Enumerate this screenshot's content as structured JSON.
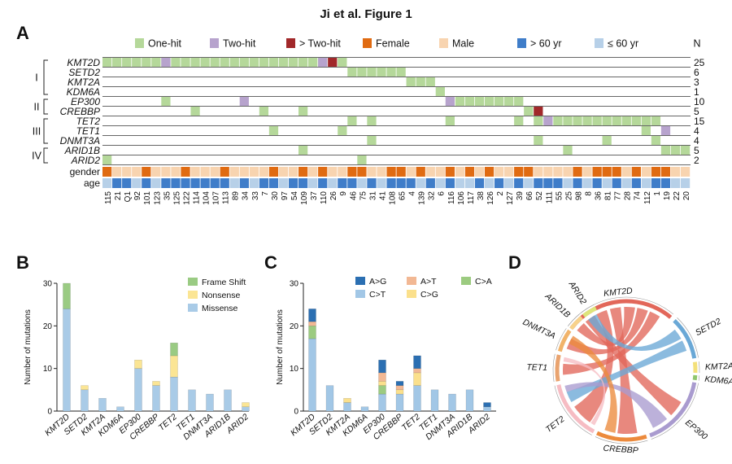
{
  "title": "Ji et al. Figure 1",
  "panels": {
    "A": "A",
    "B": "B",
    "C": "C",
    "D": "D"
  },
  "colors": {
    "one_hit": "#b5d89a",
    "two_hit": "#b7a3cd",
    "gt_two_hit": "#a1282a",
    "female": "#e06b12",
    "male": "#f8d4b0",
    "gt60": "#3f7dc9",
    "le60": "#b7d0e8",
    "frame_shift": "#9acb83",
    "nonsense": "#fbe594",
    "missense": "#a9cbe7",
    "AG": "#2b6fb2",
    "CT": "#a2c7e6",
    "AT": "#f2b894",
    "CG": "#fbe08c",
    "CA": "#9ccb80"
  },
  "panelA": {
    "legend": [
      {
        "key": "one_hit",
        "label": "One-hit"
      },
      {
        "key": "two_hit",
        "label": "Two-hit"
      },
      {
        "key": "gt_two_hit",
        "label": "> Two-hit"
      },
      {
        "key": "female",
        "label": "Female"
      },
      {
        "key": "male",
        "label": "Male"
      },
      {
        "key": "gt60",
        "label": "> 60 yr"
      },
      {
        "key": "le60",
        "label": "≤ 60 yr"
      }
    ],
    "n_header": "N",
    "groups": [
      {
        "label": "I",
        "genes": [
          "KMT2D",
          "SETD2",
          "KMT2A",
          "KDM6A"
        ]
      },
      {
        "label": "II",
        "genes": [
          "EP300",
          "CREBBP"
        ]
      },
      {
        "label": "III",
        "genes": [
          "TET2",
          "TET1",
          "DNMT3A"
        ]
      },
      {
        "label": "IV",
        "genes": [
          "ARID1B",
          "ARID2"
        ]
      }
    ],
    "genes": [
      {
        "name": "KMT2D",
        "n": "25"
      },
      {
        "name": "SETD2",
        "n": "6"
      },
      {
        "name": "KMT2A",
        "n": "3"
      },
      {
        "name": "KDM6A",
        "n": "1"
      },
      {
        "name": "EP300",
        "n": "10"
      },
      {
        "name": "CREBBP",
        "n": "5"
      },
      {
        "name": "TET2",
        "n": "15"
      },
      {
        "name": "TET1",
        "n": "4"
      },
      {
        "name": "DNMT3A",
        "n": "4"
      },
      {
        "name": "ARID1B",
        "n": "5"
      },
      {
        "name": "ARID2",
        "n": "2"
      }
    ],
    "gender_label": "gender",
    "age_label": "age",
    "samples": [
      "115",
      "21",
      "Q1",
      "92",
      "101",
      "123",
      "35",
      "125",
      "122",
      "114",
      "104",
      "107",
      "113",
      "89",
      "34",
      "33",
      "7",
      "30",
      "97",
      "54",
      "109",
      "37",
      "110",
      "26",
      "9",
      "46",
      "75",
      "31",
      "41",
      "108",
      "65",
      "4",
      "139",
      "32",
      "6",
      "116",
      "106",
      "117",
      "38",
      "126",
      "2",
      "127",
      "39",
      "66",
      "52",
      "111",
      "55",
      "25",
      "98",
      "8",
      "36",
      "81",
      "77",
      "28",
      "74",
      "112",
      "1",
      "19",
      "22",
      "20"
    ],
    "cells": [
      {
        "row": 0,
        "from": 0,
        "to": 22,
        "type": "one_hit"
      },
      {
        "row": 0,
        "from": 6,
        "to": 6,
        "type": "two_hit"
      },
      {
        "row": 0,
        "from": 22,
        "to": 22,
        "type": "two_hit"
      },
      {
        "row": 0,
        "from": 23,
        "to": 23,
        "type": "gt_two_hit"
      },
      {
        "row": 0,
        "from": 24,
        "to": 24,
        "type": "one_hit"
      },
      {
        "row": 1,
        "from": 25,
        "to": 30,
        "type": "one_hit"
      },
      {
        "row": 2,
        "from": 31,
        "to": 33,
        "type": "one_hit"
      },
      {
        "row": 3,
        "from": 34,
        "to": 34,
        "type": "one_hit"
      },
      {
        "row": 4,
        "from": 6,
        "to": 6,
        "type": "one_hit"
      },
      {
        "row": 4,
        "from": 14,
        "to": 14,
        "type": "two_hit"
      },
      {
        "row": 4,
        "from": 35,
        "to": 35,
        "type": "two_hit"
      },
      {
        "row": 4,
        "from": 36,
        "to": 42,
        "type": "one_hit"
      },
      {
        "row": 5,
        "from": 9,
        "to": 9,
        "type": "one_hit"
      },
      {
        "row": 5,
        "from": 16,
        "to": 16,
        "type": "one_hit"
      },
      {
        "row": 5,
        "from": 20,
        "to": 20,
        "type": "one_hit"
      },
      {
        "row": 5,
        "from": 43,
        "to": 43,
        "type": "one_hit"
      },
      {
        "row": 5,
        "from": 44,
        "to": 44,
        "type": "gt_two_hit"
      },
      {
        "row": 6,
        "from": 25,
        "to": 25,
        "type": "one_hit"
      },
      {
        "row": 6,
        "from": 27,
        "to": 27,
        "type": "one_hit"
      },
      {
        "row": 6,
        "from": 35,
        "to": 35,
        "type": "one_hit"
      },
      {
        "row": 6,
        "from": 42,
        "to": 42,
        "type": "one_hit"
      },
      {
        "row": 6,
        "from": 44,
        "to": 44,
        "type": "one_hit"
      },
      {
        "row": 6,
        "from": 45,
        "to": 45,
        "type": "two_hit"
      },
      {
        "row": 6,
        "from": 46,
        "to": 56,
        "type": "one_hit"
      },
      {
        "row": 7,
        "from": 17,
        "to": 17,
        "type": "one_hit"
      },
      {
        "row": 7,
        "from": 24,
        "to": 24,
        "type": "one_hit"
      },
      {
        "row": 7,
        "from": 55,
        "to": 55,
        "type": "one_hit"
      },
      {
        "row": 7,
        "from": 57,
        "to": 57,
        "type": "two_hit"
      },
      {
        "row": 8,
        "from": 27,
        "to": 27,
        "type": "one_hit"
      },
      {
        "row": 8,
        "from": 44,
        "to": 44,
        "type": "one_hit"
      },
      {
        "row": 8,
        "from": 51,
        "to": 51,
        "type": "one_hit"
      },
      {
        "row": 8,
        "from": 56,
        "to": 56,
        "type": "one_hit"
      },
      {
        "row": 9,
        "from": 20,
        "to": 20,
        "type": "one_hit"
      },
      {
        "row": 9,
        "from": 47,
        "to": 47,
        "type": "one_hit"
      },
      {
        "row": 9,
        "from": 57,
        "to": 59,
        "type": "one_hit"
      },
      {
        "row": 10,
        "from": 0,
        "to": 0,
        "type": "one_hit"
      },
      {
        "row": 10,
        "from": 26,
        "to": 26,
        "type": "one_hit"
      }
    ],
    "female_indices": [
      0,
      4,
      8,
      12,
      17,
      20,
      22,
      25,
      26,
      29,
      30,
      32,
      35,
      37,
      39,
      42,
      43,
      48,
      50,
      51,
      52,
      54,
      56,
      57
    ],
    "gt60_indices": [
      1,
      2,
      4,
      6,
      7,
      8,
      9,
      10,
      11,
      12,
      14,
      16,
      17,
      19,
      20,
      22,
      24,
      25,
      27,
      29,
      30,
      31,
      33,
      35,
      38,
      40,
      42,
      44,
      45,
      46,
      48,
      50,
      52,
      54,
      56,
      57
    ]
  },
  "panelB": {
    "ylabel": "Number of mutations",
    "yticks": [
      "0",
      "10",
      "20",
      "30"
    ],
    "legend": [
      {
        "key": "frame_shift",
        "label": "Frame Shift"
      },
      {
        "key": "nonsense",
        "label": "Nonsense"
      },
      {
        "key": "missense",
        "label": "Missense"
      }
    ]
  },
  "panelC": {
    "ylabel": "Number of mutations",
    "yticks": [
      "0",
      "10",
      "20",
      "30"
    ],
    "legend": [
      {
        "key": "AG",
        "label": "A>G"
      },
      {
        "key": "AT",
        "label": "A>T"
      },
      {
        "key": "CA",
        "label": "C>A"
      },
      {
        "key": "CT",
        "label": "C>T"
      },
      {
        "key": "CG",
        "label": "C>G"
      }
    ]
  },
  "chart_data": [
    {
      "type": "bar",
      "stacked": true,
      "title": "",
      "xlabel": "",
      "ylabel": "Number of mutations",
      "ylim": [
        0,
        30
      ],
      "categories": [
        "KMT2D",
        "SETD2",
        "KMT2A",
        "KDM6A",
        "EP300",
        "CREBBP",
        "TET2",
        "TET1",
        "DNMT3A",
        "ARID1B",
        "ARID2"
      ],
      "series": [
        {
          "name": "Missense",
          "color_key": "missense",
          "values": [
            24,
            5,
            3,
            1,
            10,
            6,
            8,
            5,
            4,
            5,
            1
          ]
        },
        {
          "name": "Nonsense",
          "color_key": "nonsense",
          "values": [
            0,
            1,
            0,
            0,
            2,
            1,
            5,
            0,
            0,
            0,
            1
          ]
        },
        {
          "name": "Frame Shift",
          "color_key": "frame_shift",
          "values": [
            6,
            0,
            0,
            0,
            0,
            0,
            3,
            0,
            0,
            0,
            0
          ]
        }
      ]
    },
    {
      "type": "bar",
      "stacked": true,
      "title": "",
      "xlabel": "",
      "ylabel": "Number of mutations",
      "ylim": [
        0,
        30
      ],
      "categories": [
        "KMT2D",
        "SETD2",
        "KMT2A",
        "KDM6A",
        "EP300",
        "CREBBP",
        "TET2",
        "TET1",
        "DNMT3A",
        "ARID1B",
        "ARID2"
      ],
      "series": [
        {
          "name": "C>T",
          "color_key": "CT",
          "values": [
            17,
            6,
            2,
            1,
            4,
            4,
            6,
            5,
            4,
            5,
            1
          ]
        },
        {
          "name": "C>A",
          "color_key": "CA",
          "values": [
            3,
            0,
            0,
            0,
            2,
            0,
            0,
            0,
            0,
            0,
            0
          ]
        },
        {
          "name": "C>G",
          "color_key": "CG",
          "values": [
            0,
            0,
            1,
            0,
            1,
            1,
            3,
            0,
            0,
            0,
            0
          ]
        },
        {
          "name": "A>T",
          "color_key": "AT",
          "values": [
            1,
            0,
            0,
            0,
            2,
            1,
            1,
            0,
            0,
            0,
            0
          ]
        },
        {
          "name": "A>G",
          "color_key": "AG",
          "values": [
            3,
            0,
            0,
            0,
            3,
            1,
            3,
            0,
            0,
            0,
            1
          ]
        }
      ]
    }
  ],
  "panelD": {
    "genes": [
      {
        "name": "KMT2D",
        "color": "#e2675a"
      },
      {
        "name": "SETD2",
        "color": "#6aa8d6"
      },
      {
        "name": "KMT2A",
        "color": "#f3e07a"
      },
      {
        "name": "KDM6A",
        "color": "#8fc66d"
      },
      {
        "name": "EP300",
        "color": "#a99bcf"
      },
      {
        "name": "CREBBP",
        "color": "#ec8a3c"
      },
      {
        "name": "TET2",
        "color": "#f6bcc3"
      },
      {
        "name": "TET1",
        "color": "#e9a36f"
      },
      {
        "name": "DNMT3A",
        "color": "#f1b36a"
      },
      {
        "name": "ARID1B",
        "color": "#f7d28a"
      },
      {
        "name": "ARID2",
        "color": "#dde57b"
      }
    ]
  }
}
